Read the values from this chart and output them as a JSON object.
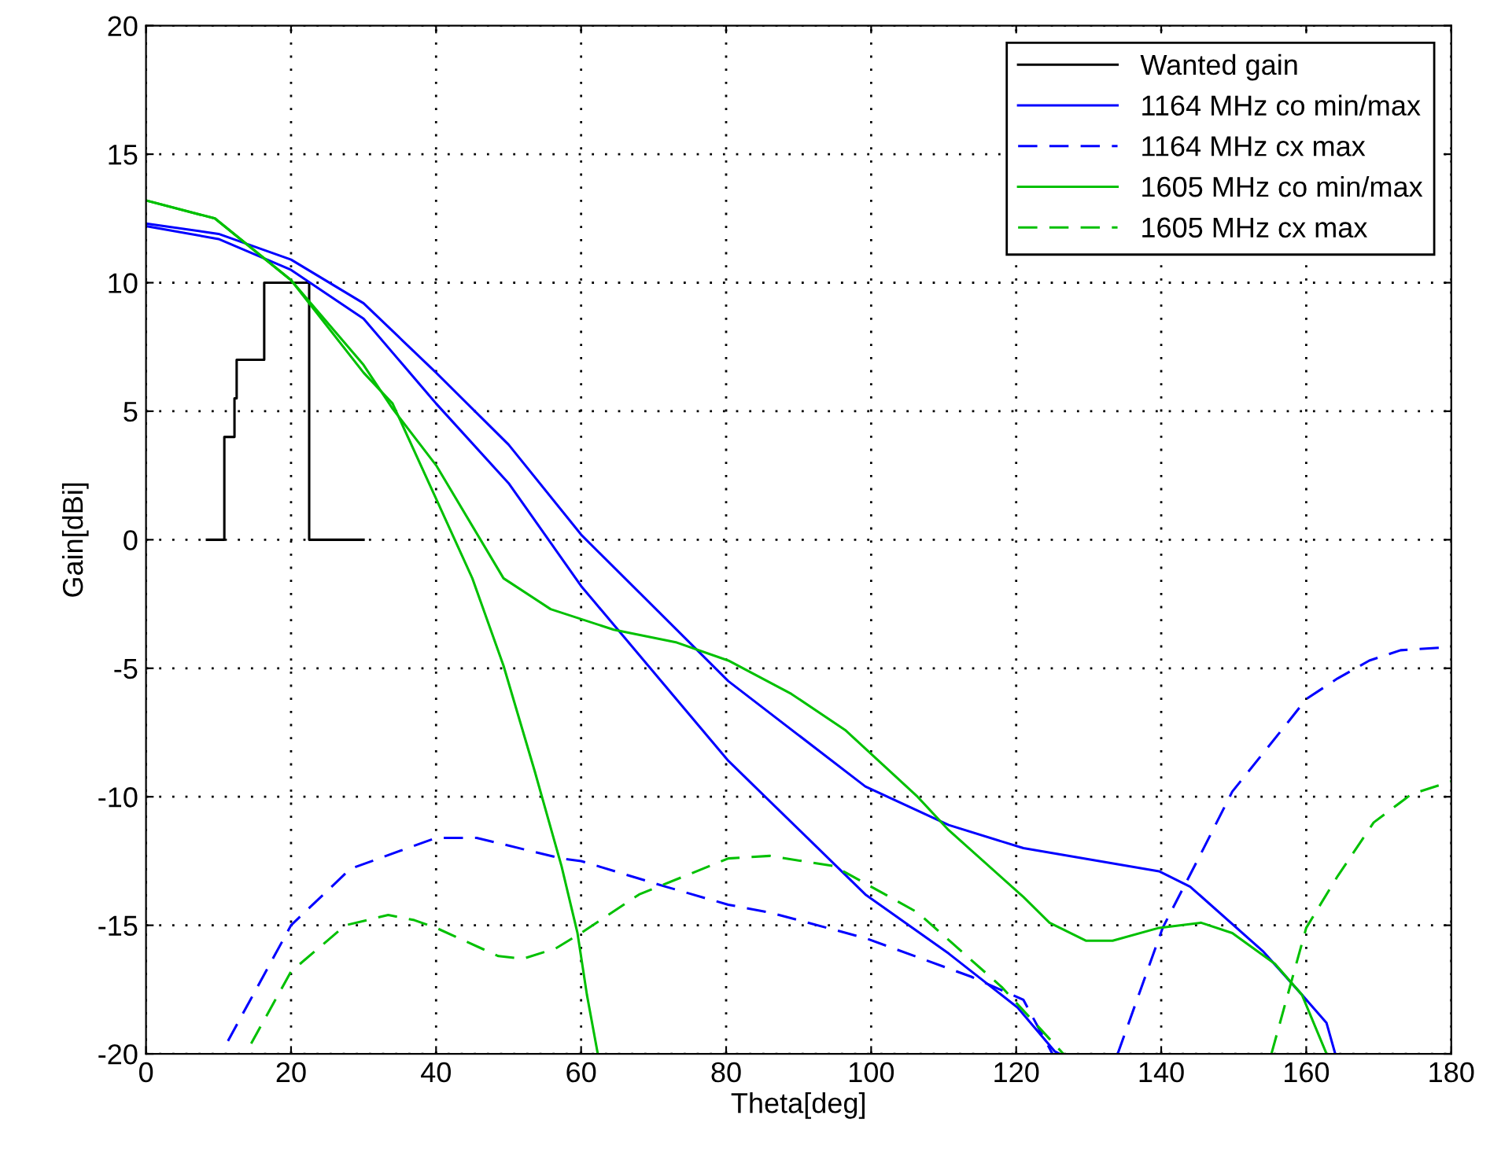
{
  "chart_data": {
    "type": "line",
    "xlabel": "Theta[deg]",
    "ylabel": "Gain[dBi]",
    "xlim": [
      0,
      180
    ],
    "ylim": [
      -20,
      20
    ],
    "xticks": [
      0,
      20,
      40,
      60,
      80,
      100,
      120,
      140,
      160,
      180
    ],
    "yticks": [
      -20,
      -15,
      -10,
      -5,
      0,
      5,
      10,
      15,
      20
    ],
    "grid": true,
    "legend": "top right",
    "marker": "none",
    "series": [
      {
        "name": "Wanted gain",
        "type": "step",
        "color": "#000000",
        "line_style": "solid",
        "x": [
          8.4,
          10.8,
          12.2,
          12.5,
          16.3,
          22.5,
          30
        ],
        "values": [
          0,
          4,
          5.5,
          7,
          10,
          0,
          0
        ]
      },
      {
        "name": "1164 MHz co min/max",
        "color": "#0000ff",
        "line_style": "solid",
        "x": [
          0,
          10,
          20,
          30,
          40,
          50,
          60,
          80.3,
          99.2,
          110.7,
          121,
          139.7,
          144,
          154,
          159.4,
          162.8,
          164
        ],
        "values": [
          12.3,
          11.9,
          10.9,
          9.2,
          6.5,
          3.7,
          0.2,
          -5.5,
          -9.6,
          -11.1,
          -12,
          -12.9,
          -13.5,
          -16,
          -17.7,
          -18.8,
          -20
        ]
      },
      {
        "color": "#0000ff",
        "line_style": "solid",
        "x": [
          0,
          10,
          20,
          30,
          40,
          50,
          60,
          80.3,
          99.2,
          110.7,
          120.2,
          125.3,
          126
        ],
        "values": [
          12.2,
          11.7,
          10.5,
          8.6,
          5.3,
          2.2,
          -1.8,
          -8.6,
          -13.8,
          -16.1,
          -18.2,
          -19.9,
          -20
        ]
      },
      {
        "name": "1164 MHz cx max",
        "color": "#0000ff",
        "line_style": "dashed",
        "x": [
          11.3,
          20,
          28.2,
          40,
          45.6,
          57.3,
          60,
          71.7,
          80.3,
          86,
          99.2,
          113.8,
          121,
          125
        ],
        "values": [
          -19.5,
          -15,
          -12.8,
          -11.6,
          -11.6,
          -12.4,
          -12.5,
          -13.5,
          -14.2,
          -14.5,
          -15.5,
          -17,
          -17.9,
          -20
        ]
      },
      {
        "color": "#0000ff",
        "line_style": "dashed",
        "x": [
          134,
          140.2,
          145.5,
          149.8,
          157.2,
          160,
          164.3,
          168.7,
          173,
          178.5
        ],
        "values": [
          -20,
          -15.1,
          -12.2,
          -9.8,
          -7.2,
          -6.2,
          -5.4,
          -4.7,
          -4.3,
          -4.2
        ]
      },
      {
        "name": "1605 MHz co min/max",
        "color": "#00c000",
        "line_style": "solid",
        "x": [
          0,
          9.5,
          20,
          30,
          34,
          40,
          49.3,
          55.8,
          64.5,
          73.2,
          80.3,
          89,
          96.4,
          106.4,
          110.7,
          121,
          124.6,
          129.6,
          133.3,
          139.7,
          145.5,
          149.8,
          155.7,
          159.4,
          162.8
        ],
        "values": [
          13.2,
          12.5,
          10.1,
          6.8,
          5.1,
          2.9,
          -1.5,
          -2.7,
          -3.5,
          -4,
          -4.7,
          -6,
          -7.4,
          -10,
          -11.3,
          -13.9,
          -14.9,
          -15.6,
          -15.6,
          -15.1,
          -14.9,
          -15.3,
          -16.5,
          -17.7,
          -20
        ]
      },
      {
        "color": "#00c000",
        "line_style": "solid",
        "x": [
          0,
          9.5,
          20,
          30,
          34,
          40,
          45,
          49.3,
          53.6,
          57.3,
          59.5,
          60.8,
          62.3
        ],
        "values": [
          13.2,
          12.5,
          10.1,
          6.5,
          5.3,
          1.6,
          -1.5,
          -4.9,
          -9,
          -12.7,
          -15.3,
          -17.7,
          -20
        ]
      },
      {
        "name": "1605 MHz cx max",
        "color": "#00c000",
        "line_style": "dashed",
        "x": [
          14.5,
          20,
          27.5,
          33.4,
          37,
          40,
          48.6,
          52,
          56.5,
          60,
          68,
          80.3,
          86,
          94.9,
          106.4,
          118,
          126.5
        ],
        "values": [
          -19.6,
          -16.8,
          -15,
          -14.6,
          -14.8,
          -15.1,
          -16.2,
          -16.3,
          -15.9,
          -15.3,
          -13.8,
          -12.4,
          -12.3,
          -12.7,
          -14.5,
          -17.4,
          -20
        ]
      },
      {
        "color": "#00c000",
        "line_style": "dashed",
        "x": [
          155.2,
          160,
          164.3,
          169.3,
          174.5,
          180
        ],
        "values": [
          -20,
          -15.1,
          -13.1,
          -11,
          -9.9,
          -9.4
        ]
      }
    ]
  }
}
